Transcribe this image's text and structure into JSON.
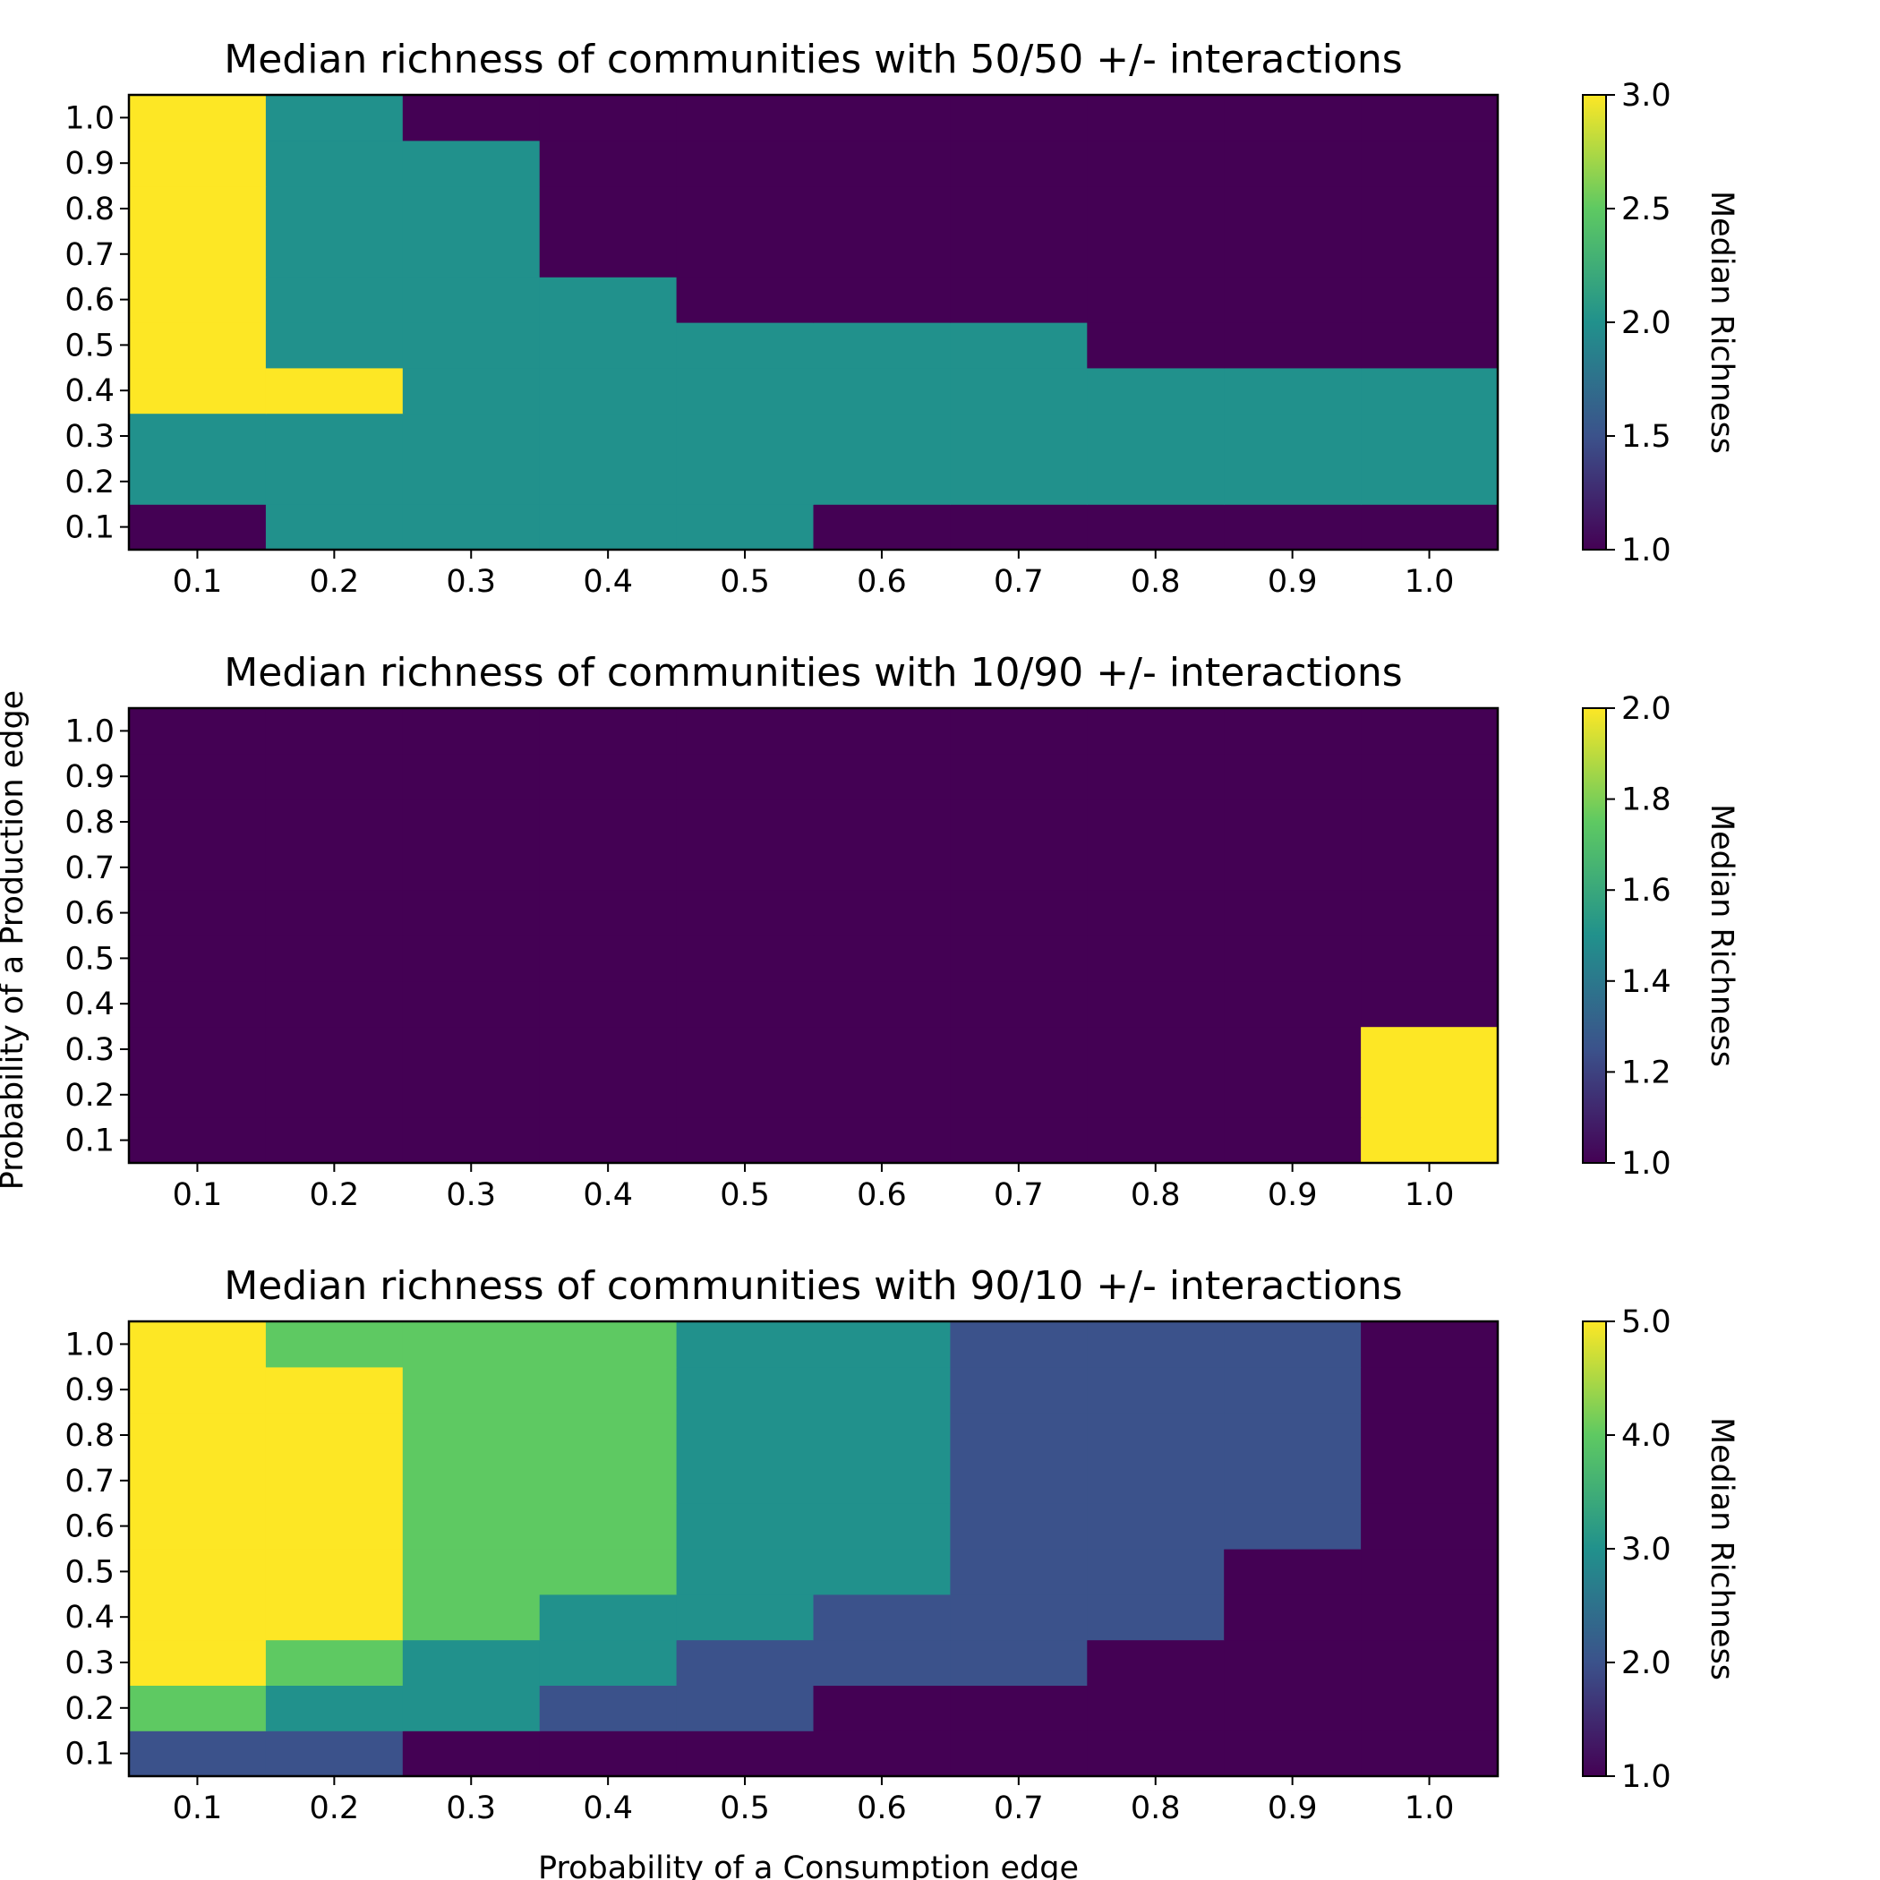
{
  "figure": {
    "ylabel": "Probability of a Production edge",
    "xlabel": "Probability of a Consumption edge"
  },
  "chart_data": [
    {
      "type": "heatmap",
      "title": "Median richness of communities with 50/50 +/- interactions",
      "x_ticks": [
        "0.1",
        "0.2",
        "0.3",
        "0.4",
        "0.5",
        "0.6",
        "0.7",
        "0.8",
        "0.9",
        "1.0"
      ],
      "y_ticks": [
        "0.1",
        "0.2",
        "0.3",
        "0.4",
        "0.5",
        "0.6",
        "0.7",
        "0.8",
        "0.9",
        "1.0"
      ],
      "x_values": [
        0.1,
        0.2,
        0.3,
        0.4,
        0.5,
        0.6,
        0.7,
        0.8,
        0.9,
        1.0
      ],
      "y_values": [
        0.1,
        0.2,
        0.3,
        0.4,
        0.5,
        0.6,
        0.7,
        0.8,
        0.9,
        1.0
      ],
      "colorscale": "viridis",
      "zlim": [
        1,
        3
      ],
      "colorbar_label": "Median Richness",
      "colorbar_ticks": [
        {
          "value": 1.0,
          "label": "1.0"
        },
        {
          "value": 1.5,
          "label": "1.5"
        },
        {
          "value": 2.0,
          "label": "2.0"
        },
        {
          "value": 2.5,
          "label": "2.5"
        },
        {
          "value": 3.0,
          "label": "3.0"
        }
      ],
      "z": [
        [
          1,
          2,
          2,
          2,
          2,
          1,
          1,
          1,
          1,
          1
        ],
        [
          2,
          2,
          2,
          2,
          2,
          2,
          2,
          2,
          2,
          2
        ],
        [
          2,
          2,
          2,
          2,
          2,
          2,
          2,
          2,
          2,
          2
        ],
        [
          3,
          3,
          2,
          2,
          2,
          2,
          2,
          2,
          2,
          2
        ],
        [
          3,
          2,
          2,
          2,
          2,
          2,
          2,
          1,
          1,
          1
        ],
        [
          3,
          2,
          2,
          2,
          1,
          1,
          1,
          1,
          1,
          1
        ],
        [
          3,
          2,
          2,
          1,
          1,
          1,
          1,
          1,
          1,
          1
        ],
        [
          3,
          2,
          2,
          1,
          1,
          1,
          1,
          1,
          1,
          1
        ],
        [
          3,
          2,
          2,
          1,
          1,
          1,
          1,
          1,
          1,
          1
        ],
        [
          3,
          2,
          1,
          1,
          1,
          1,
          1,
          1,
          1,
          1
        ]
      ]
    },
    {
      "type": "heatmap",
      "title": "Median richness of communities with 10/90 +/- interactions",
      "x_ticks": [
        "0.1",
        "0.2",
        "0.3",
        "0.4",
        "0.5",
        "0.6",
        "0.7",
        "0.8",
        "0.9",
        "1.0"
      ],
      "y_ticks": [
        "0.1",
        "0.2",
        "0.3",
        "0.4",
        "0.5",
        "0.6",
        "0.7",
        "0.8",
        "0.9",
        "1.0"
      ],
      "x_values": [
        0.1,
        0.2,
        0.3,
        0.4,
        0.5,
        0.6,
        0.7,
        0.8,
        0.9,
        1.0
      ],
      "y_values": [
        0.1,
        0.2,
        0.3,
        0.4,
        0.5,
        0.6,
        0.7,
        0.8,
        0.9,
        1.0
      ],
      "colorscale": "viridis",
      "zlim": [
        1,
        2
      ],
      "colorbar_label": "Median Richness",
      "colorbar_ticks": [
        {
          "value": 1.0,
          "label": "1.0"
        },
        {
          "value": 1.2,
          "label": "1.2"
        },
        {
          "value": 1.4,
          "label": "1.4"
        },
        {
          "value": 1.6,
          "label": "1.6"
        },
        {
          "value": 1.8,
          "label": "1.8"
        },
        {
          "value": 2.0,
          "label": "2.0"
        }
      ],
      "z": [
        [
          1,
          1,
          1,
          1,
          1,
          1,
          1,
          1,
          1,
          2
        ],
        [
          1,
          1,
          1,
          1,
          1,
          1,
          1,
          1,
          1,
          2
        ],
        [
          1,
          1,
          1,
          1,
          1,
          1,
          1,
          1,
          1,
          2
        ],
        [
          1,
          1,
          1,
          1,
          1,
          1,
          1,
          1,
          1,
          1
        ],
        [
          1,
          1,
          1,
          1,
          1,
          1,
          1,
          1,
          1,
          1
        ],
        [
          1,
          1,
          1,
          1,
          1,
          1,
          1,
          1,
          1,
          1
        ],
        [
          1,
          1,
          1,
          1,
          1,
          1,
          1,
          1,
          1,
          1
        ],
        [
          1,
          1,
          1,
          1,
          1,
          1,
          1,
          1,
          1,
          1
        ],
        [
          1,
          1,
          1,
          1,
          1,
          1,
          1,
          1,
          1,
          1
        ],
        [
          1,
          1,
          1,
          1,
          1,
          1,
          1,
          1,
          1,
          1
        ]
      ]
    },
    {
      "type": "heatmap",
      "title": "Median richness of communities with 90/10 +/- interactions",
      "x_ticks": [
        "0.1",
        "0.2",
        "0.3",
        "0.4",
        "0.5",
        "0.6",
        "0.7",
        "0.8",
        "0.9",
        "1.0"
      ],
      "y_ticks": [
        "0.1",
        "0.2",
        "0.3",
        "0.4",
        "0.5",
        "0.6",
        "0.7",
        "0.8",
        "0.9",
        "1.0"
      ],
      "x_values": [
        0.1,
        0.2,
        0.3,
        0.4,
        0.5,
        0.6,
        0.7,
        0.8,
        0.9,
        1.0
      ],
      "y_values": [
        0.1,
        0.2,
        0.3,
        0.4,
        0.5,
        0.6,
        0.7,
        0.8,
        0.9,
        1.0
      ],
      "colorscale": "viridis",
      "zlim": [
        1,
        5
      ],
      "colorbar_label": "Median Richness",
      "colorbar_ticks": [
        {
          "value": 1.0,
          "label": "1.0"
        },
        {
          "value": 2.0,
          "label": "2.0"
        },
        {
          "value": 3.0,
          "label": "3.0"
        },
        {
          "value": 4.0,
          "label": "4.0"
        },
        {
          "value": 5.0,
          "label": "5.0"
        }
      ],
      "z": [
        [
          2,
          2,
          1,
          1,
          1,
          1,
          1,
          1,
          1,
          1
        ],
        [
          4,
          3,
          3,
          2,
          2,
          1,
          1,
          1,
          1,
          1
        ],
        [
          5,
          4,
          3,
          3,
          2,
          2,
          2,
          1,
          1,
          1
        ],
        [
          5,
          5,
          4,
          3,
          3,
          2,
          2,
          2,
          1,
          1
        ],
        [
          5,
          5,
          4,
          4,
          3,
          3,
          2,
          2,
          1,
          1
        ],
        [
          5,
          5,
          4,
          4,
          3,
          3,
          2,
          2,
          2,
          1
        ],
        [
          5,
          5,
          4,
          4,
          3,
          3,
          2,
          2,
          2,
          1
        ],
        [
          5,
          5,
          4,
          4,
          3,
          3,
          2,
          2,
          2,
          1
        ],
        [
          5,
          5,
          4,
          4,
          3,
          3,
          2,
          2,
          2,
          1
        ],
        [
          5,
          4,
          4,
          4,
          3,
          3,
          2,
          2,
          2,
          1
        ]
      ]
    }
  ]
}
